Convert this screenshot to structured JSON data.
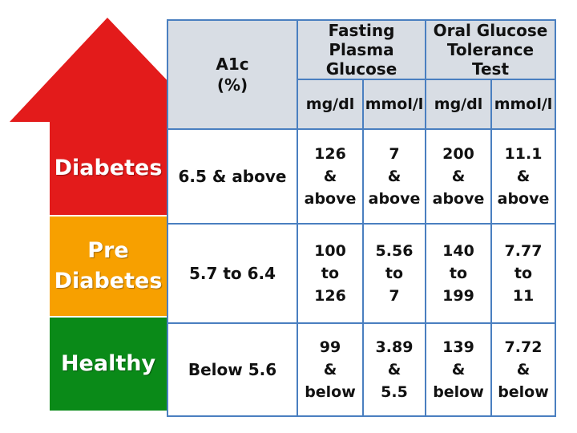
{
  "colors": {
    "diabetes": "#e31b1b",
    "pre_diabetes": "#f7a000",
    "healthy": "#0a8a18",
    "border": "#4a7fc0",
    "header_bg": "#d8dde4"
  },
  "categories": {
    "diabetes": "Diabetes",
    "pre_diabetes": [
      "Pre",
      "Diabetes"
    ],
    "healthy": "Healthy"
  },
  "header": {
    "a1c": [
      "A1c",
      "(%)"
    ],
    "fasting": [
      "Fasting Plasma",
      "Glucose"
    ],
    "ogtt": [
      "Oral Glucose",
      "Tolerance Test"
    ],
    "units": [
      "mg/dl",
      "mmol/l",
      "mg/dl",
      "mmol/l"
    ]
  },
  "rows": [
    {
      "a1c": "6.5 & above",
      "cells": [
        [
          "126",
          "&",
          "above"
        ],
        [
          "7",
          "&",
          "above"
        ],
        [
          "200",
          "&",
          "above"
        ],
        [
          "11.1",
          "&",
          "above"
        ]
      ]
    },
    {
      "a1c": "5.7 to 6.4",
      "cells": [
        [
          "100",
          "to",
          "126"
        ],
        [
          "5.56",
          "to",
          "7"
        ],
        [
          "140",
          "to",
          "199"
        ],
        [
          "7.77",
          "to",
          "11"
        ]
      ]
    },
    {
      "a1c": "Below 5.6",
      "cells": [
        [
          "99",
          "&",
          "below"
        ],
        [
          "3.89",
          "&",
          "5.5"
        ],
        [
          "139",
          "&",
          "below"
        ],
        [
          "7.72",
          "&",
          "below"
        ]
      ]
    }
  ]
}
